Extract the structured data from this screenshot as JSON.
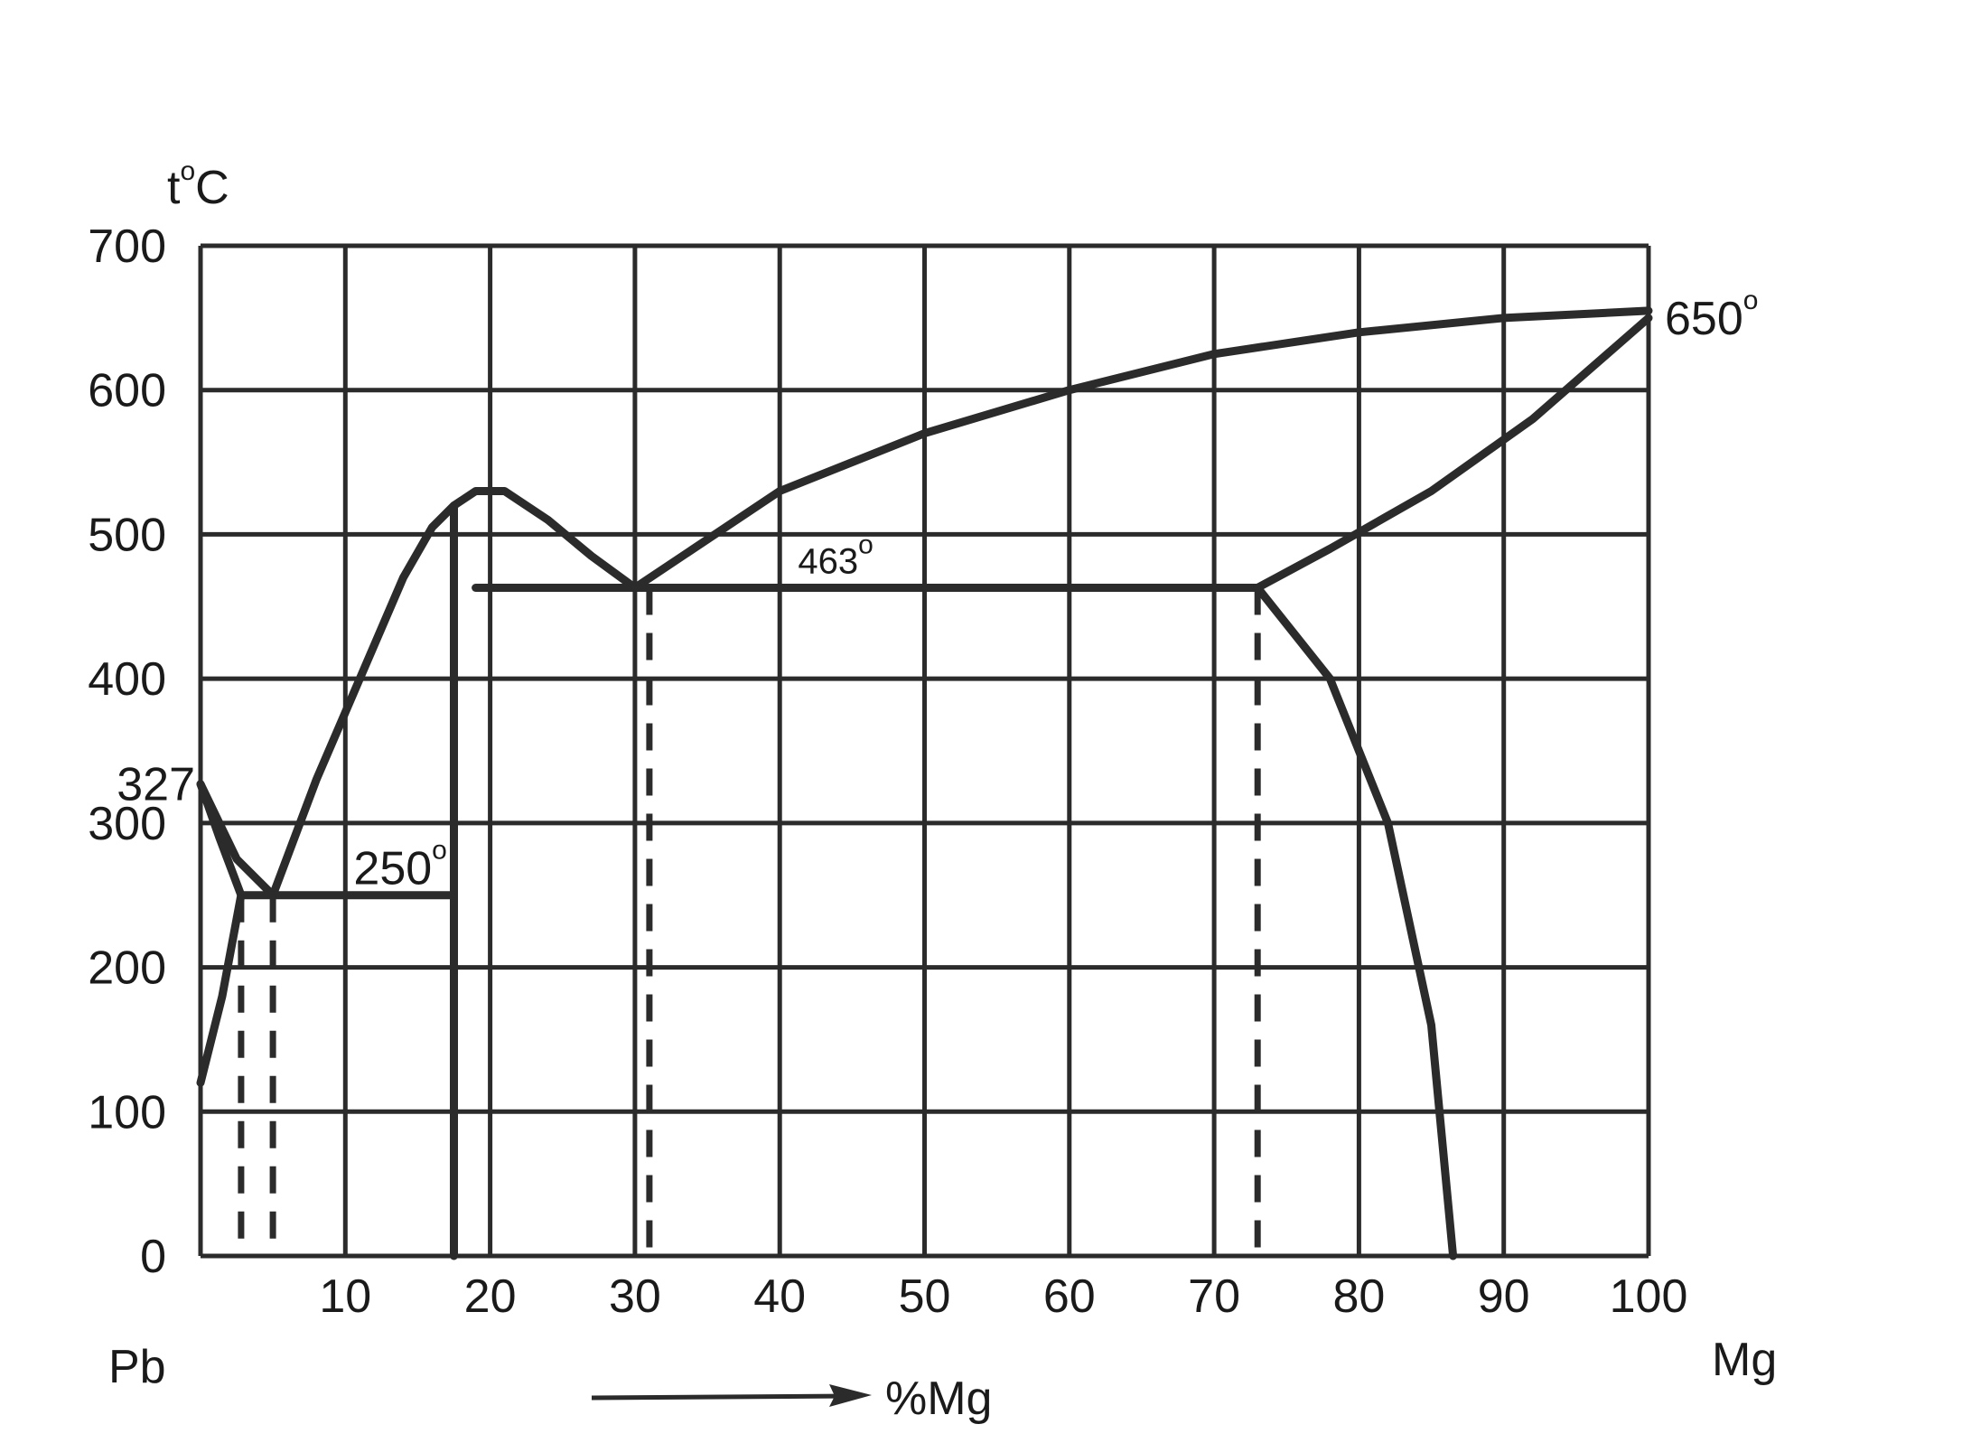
{
  "chart_data": {
    "type": "line",
    "title": "",
    "ylabel_t": "t",
    "ylabel_unit": "C",
    "xlabel": "%Mg",
    "left_component": "Pb",
    "right_component": "Mg",
    "xlim": [
      0,
      100
    ],
    "ylim": [
      0,
      700
    ],
    "grid": true,
    "x_ticks": [
      "10",
      "20",
      "30",
      "40",
      "50",
      "60",
      "70",
      "80",
      "90",
      "100"
    ],
    "y_ticks": [
      "0",
      "100",
      "200",
      "300",
      "400",
      "500",
      "600",
      "700"
    ],
    "annotations": [
      {
        "text": "327",
        "x": 0,
        "y": 327,
        "placement": "left"
      },
      {
        "text": "250",
        "x": 14,
        "y": 250,
        "placement": "above"
      },
      {
        "text": "463",
        "x": 45,
        "y": 463,
        "placement": "above"
      },
      {
        "text": "650",
        "x": 100,
        "y": 650,
        "placement": "right"
      }
    ],
    "degree_mark": "o",
    "series": [
      {
        "style": "solid",
        "points": [
          [
            0,
            327
          ],
          [
            2.5,
            275
          ],
          [
            5,
            250
          ]
        ]
      },
      {
        "style": "solid",
        "points": [
          [
            5,
            250
          ],
          [
            8,
            330
          ],
          [
            11,
            400
          ],
          [
            14,
            470
          ],
          [
            16,
            505
          ],
          [
            17.5,
            520
          ],
          [
            19,
            530
          ],
          [
            21,
            530
          ],
          [
            24,
            510
          ],
          [
            27,
            485
          ],
          [
            30,
            463
          ]
        ]
      },
      {
        "style": "solid",
        "points": [
          [
            0,
            327
          ],
          [
            1.3,
            290
          ],
          [
            2.8,
            250
          ]
        ]
      },
      {
        "style": "solid",
        "points": [
          [
            0,
            120
          ],
          [
            1.5,
            180
          ],
          [
            2.8,
            250
          ]
        ]
      },
      {
        "style": "solid",
        "points": [
          [
            2.8,
            250
          ],
          [
            17.5,
            250
          ]
        ]
      },
      {
        "style": "solid",
        "points": [
          [
            17.5,
            0
          ],
          [
            17.5,
            520
          ]
        ]
      },
      {
        "style": "solid",
        "points": [
          [
            19,
            463
          ],
          [
            73,
            463
          ]
        ]
      },
      {
        "style": "solid",
        "points": [
          [
            30,
            463
          ],
          [
            40,
            530
          ],
          [
            50,
            570
          ],
          [
            60,
            600
          ],
          [
            70,
            625
          ],
          [
            80,
            640
          ],
          [
            90,
            650
          ],
          [
            100,
            655
          ]
        ]
      },
      {
        "style": "solid",
        "points": [
          [
            73,
            463
          ],
          [
            78,
            490
          ],
          [
            85,
            530
          ],
          [
            92,
            580
          ],
          [
            100,
            650
          ]
        ]
      },
      {
        "style": "solid",
        "points": [
          [
            73,
            463
          ],
          [
            78,
            400
          ],
          [
            82,
            300
          ],
          [
            85,
            160
          ],
          [
            86.5,
            0
          ]
        ]
      },
      {
        "style": "dashed",
        "points": [
          [
            2.8,
            250
          ],
          [
            2.8,
            0
          ]
        ]
      },
      {
        "style": "dashed",
        "points": [
          [
            5,
            250
          ],
          [
            5,
            0
          ]
        ]
      },
      {
        "style": "dashed",
        "points": [
          [
            31,
            463
          ],
          [
            31,
            0
          ]
        ]
      },
      {
        "style": "dashed",
        "points": [
          [
            73,
            463
          ],
          [
            73,
            0
          ]
        ]
      }
    ]
  },
  "colors": {
    "line": "#2b2b2b",
    "grid": "#2b2b2b",
    "background": "#ffffff"
  }
}
